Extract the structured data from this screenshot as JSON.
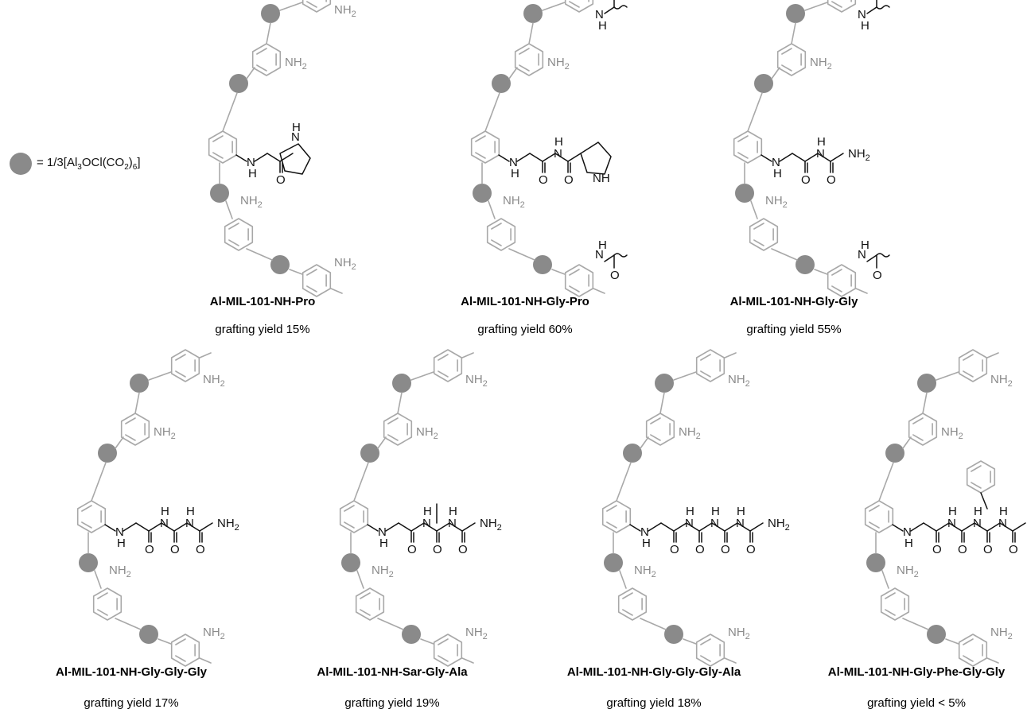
{
  "legend": {
    "node_label_html": "= 1/3[Al<sub>3</sub>OCl(CO<sub>2</sub>)<sub>6</sub>]",
    "node_color": "#8a8a8a"
  },
  "colors": {
    "framework": "#a8a8a8",
    "node": "#8a8a8a",
    "peptide": "#111111"
  },
  "labels": {
    "amine": "NH2",
    "nh": "NH",
    "h": "H",
    "o": "O",
    "n": "N"
  },
  "structures": [
    {
      "name": "Al-MIL-101-NH-Pro",
      "yield": "grafting yield 15%"
    },
    {
      "name": "Al-MIL-101-NH-Gly-Pro",
      "yield": "grafting yield 60%"
    },
    {
      "name": "Al-MIL-101-NH-Gly-Gly",
      "yield": "grafting yield 55%"
    },
    {
      "name": "Al-MIL-101-NH-Gly-Gly-Gly",
      "yield": "grafting yield 17%"
    },
    {
      "name": "Al-MIL-101-NH-Sar-Gly-Ala",
      "yield": "grafting yield 19%"
    },
    {
      "name": "Al-MIL-101-NH-Gly-Gly-Gly-Ala",
      "yield": "grafting yield 18%"
    },
    {
      "name": "Al-MIL-101-NH-Gly-Phe-Gly-Gly",
      "yield": "grafting yield < 5%"
    }
  ]
}
